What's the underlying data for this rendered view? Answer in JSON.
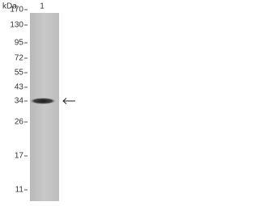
{
  "header": {
    "unit": "kDa",
    "lane": "1"
  },
  "markers": [
    "170",
    "130",
    "95",
    "72",
    "55",
    "43",
    "34",
    "26",
    "17",
    "11"
  ]
}
